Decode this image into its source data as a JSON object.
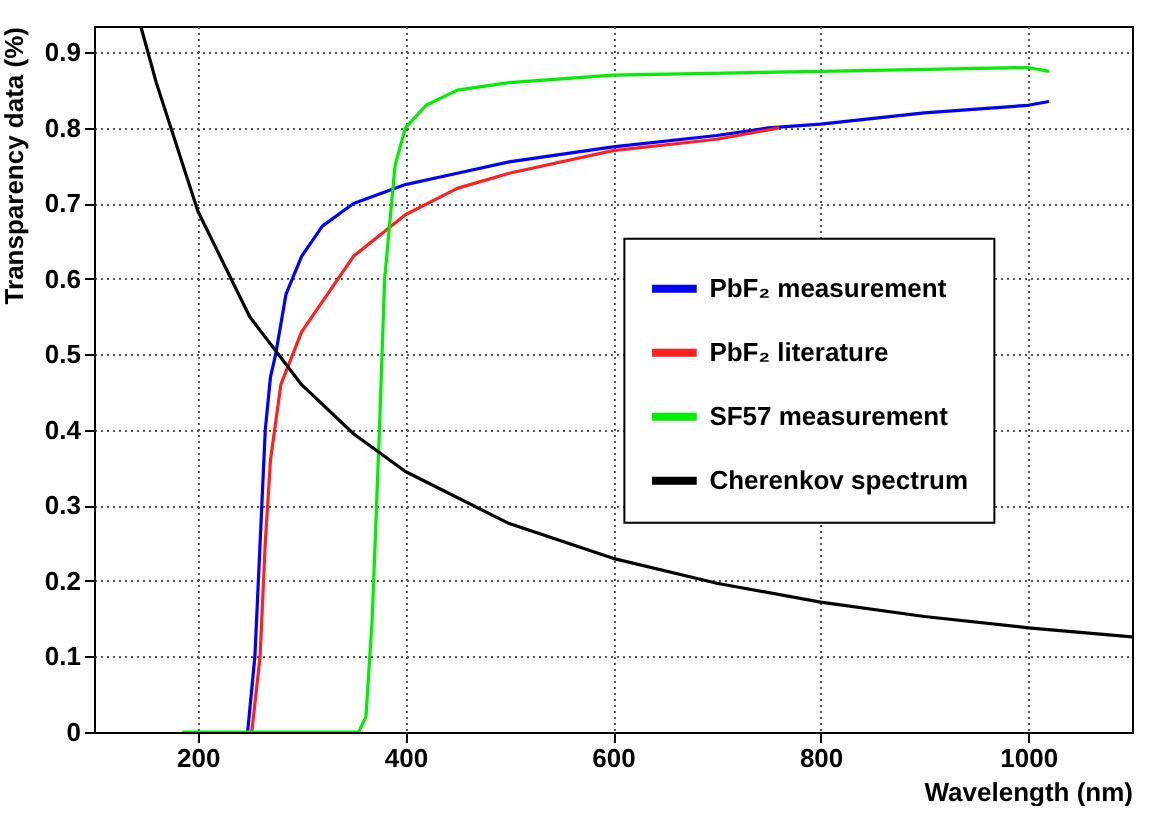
{
  "chart_data": {
    "type": "line",
    "xlabel": "Wavelength (nm)",
    "ylabel": "Transparency data (%)",
    "xlim": [
      100,
      1100
    ],
    "ylim": [
      0,
      0.935
    ],
    "xticks": [
      200,
      400,
      600,
      800,
      1000
    ],
    "yticks": [
      0,
      0.1,
      0.2,
      0.3,
      0.4,
      0.5,
      0.6,
      0.7,
      0.8,
      0.9
    ],
    "grid": true,
    "legend": "right",
    "series": [
      {
        "name": "PbF₂ measurement",
        "color": "#0000ff",
        "x": [
          248,
          255,
          260,
          265,
          270,
          275,
          285,
          300,
          320,
          350,
          400,
          450,
          500,
          600,
          700,
          750,
          800,
          900,
          1000,
          1020
        ],
        "values": [
          0,
          0.1,
          0.25,
          0.4,
          0.47,
          0.5,
          0.58,
          0.63,
          0.67,
          0.7,
          0.725,
          0.74,
          0.755,
          0.775,
          0.79,
          0.8,
          0.805,
          0.82,
          0.83,
          0.835
        ]
      },
      {
        "name": "PbF₂ literature",
        "color": "#ff2020",
        "x": [
          252,
          260,
          265,
          270,
          280,
          300,
          350,
          400,
          450,
          500,
          600,
          700,
          760
        ],
        "values": [
          0,
          0.1,
          0.25,
          0.36,
          0.46,
          0.53,
          0.63,
          0.685,
          0.72,
          0.74,
          0.77,
          0.785,
          0.8
        ]
      },
      {
        "name": "SF57 measurement",
        "color": "#00ee00",
        "x": [
          185,
          355,
          362,
          368,
          375,
          380,
          390,
          400,
          420,
          450,
          500,
          600,
          800,
          1000,
          1020
        ],
        "values": [
          0,
          0,
          0.02,
          0.15,
          0.4,
          0.6,
          0.75,
          0.8,
          0.83,
          0.85,
          0.86,
          0.87,
          0.875,
          0.88,
          0.875
        ]
      },
      {
        "name": "Cherenkov spectrum",
        "color": "#000000",
        "x": [
          145,
          160,
          200,
          250,
          300,
          350,
          400,
          500,
          600,
          700,
          800,
          900,
          1000,
          1100
        ],
        "values": [
          0.935,
          0.86,
          0.69,
          0.55,
          0.46,
          0.395,
          0.345,
          0.276,
          0.23,
          0.197,
          0.172,
          0.153,
          0.138,
          0.126
        ]
      }
    ]
  }
}
